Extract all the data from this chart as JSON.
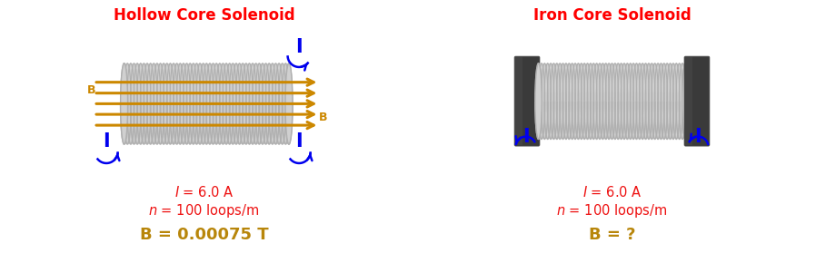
{
  "left_title": "Hollow Core Solenoid",
  "right_title": "Iron Core Solenoid",
  "title_color": "#FF0000",
  "title_fontsize": 12,
  "left_eq1": "$I$ = 6.0 A",
  "left_eq2": "$n$ = 100 loops/m",
  "left_result": "B = 0.00075 T",
  "right_eq1": "$I$ = 6.0 A",
  "right_eq2": "$n$ = 100 loops/m",
  "right_result": "B = ?",
  "eq_color": "#EE1111",
  "result_color": "#B8860B",
  "eq_fontsize": 10.5,
  "result_fontsize": 13,
  "coil_fill": "#D0D0D0",
  "coil_line": "#B0B0B0",
  "iron_color": "#3A3A3A",
  "arrow_color": "#CC8800",
  "current_color": "#0000EE",
  "bg_color": "#FFFFFF"
}
